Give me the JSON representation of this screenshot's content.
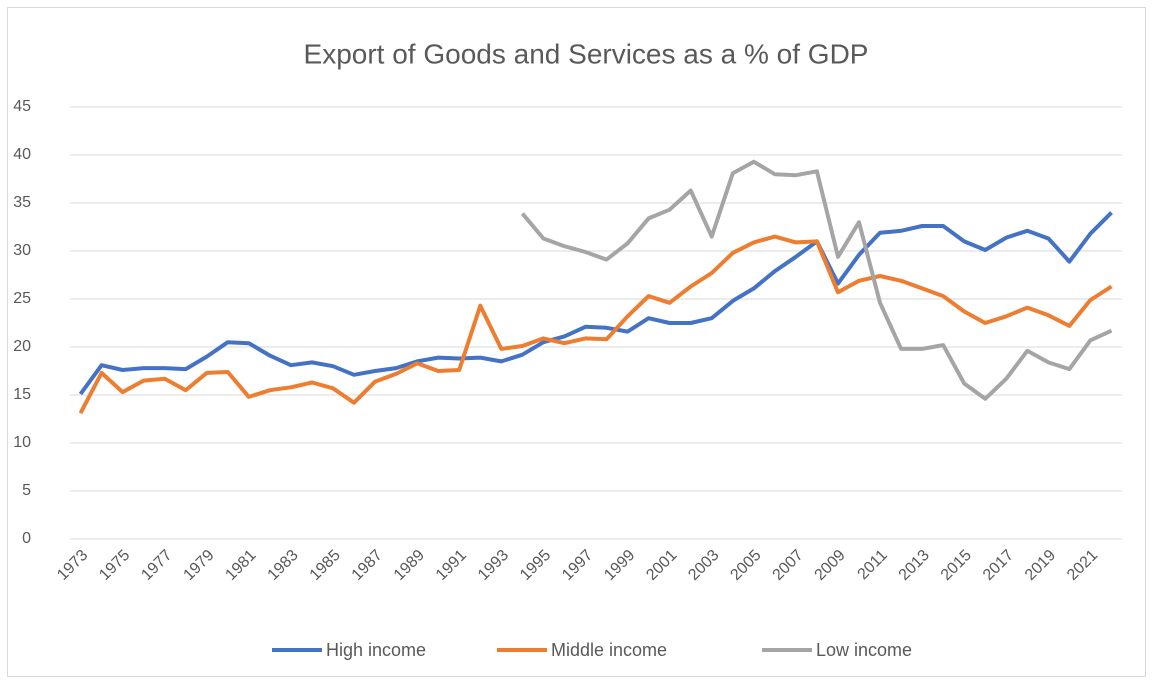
{
  "chart_data": {
    "type": "line",
    "title": "Export of Goods and Services as a % of GDP",
    "categories": [
      "1973",
      null,
      "1975",
      null,
      "1977",
      null,
      "1979",
      null,
      "1981",
      null,
      "1983",
      null,
      "1985",
      null,
      "1987",
      null,
      "1989",
      null,
      "1991",
      null,
      "1993",
      null,
      "1995",
      null,
      "1997",
      null,
      "1999",
      null,
      "2001",
      null,
      "2003",
      null,
      "2005",
      null,
      "2007",
      null,
      "2009",
      null,
      "2011",
      null,
      "2013",
      null,
      "2015",
      null,
      "2017",
      null,
      "2019",
      null,
      "2021",
      null
    ],
    "series": [
      {
        "name": "High income",
        "color": "#4472c4",
        "values": [
          15.1,
          18.1,
          17.6,
          17.8,
          17.8,
          17.7,
          19.0,
          20.5,
          20.4,
          19.1,
          18.1,
          18.4,
          18.0,
          17.1,
          17.5,
          17.8,
          18.5,
          18.9,
          18.8,
          18.9,
          18.5,
          19.2,
          20.5,
          21.1,
          22.1,
          22.0,
          21.6,
          23.0,
          22.5,
          22.5,
          23.0,
          24.8,
          26.1,
          27.9,
          29.4,
          31.0,
          26.6,
          29.6,
          31.9,
          32.1,
          32.6,
          32.6,
          31.0,
          30.1,
          31.4,
          32.1,
          31.3,
          28.9,
          31.8,
          34.0
        ]
      },
      {
        "name": "Middle income",
        "color": "#ed7d31",
        "values": [
          13.1,
          17.3,
          15.3,
          16.5,
          16.7,
          15.5,
          17.3,
          17.4,
          14.8,
          15.5,
          15.8,
          16.3,
          15.7,
          14.2,
          16.4,
          17.2,
          18.3,
          17.5,
          17.6,
          24.3,
          19.8,
          20.1,
          20.9,
          20.4,
          20.9,
          20.8,
          23.2,
          25.3,
          24.6,
          26.3,
          27.7,
          29.8,
          30.9,
          31.5,
          30.9,
          31.0,
          25.7,
          26.9,
          27.4,
          26.9,
          26.1,
          25.3,
          23.7,
          22.5,
          23.2,
          24.1,
          23.3,
          22.2,
          24.9,
          26.3
        ]
      },
      {
        "name": "Low income",
        "color": "#a5a5a5",
        "values": [
          null,
          null,
          null,
          null,
          null,
          null,
          null,
          null,
          null,
          null,
          null,
          null,
          null,
          null,
          null,
          null,
          null,
          null,
          null,
          null,
          null,
          33.9,
          31.3,
          30.5,
          29.9,
          29.1,
          30.8,
          33.4,
          34.3,
          36.3,
          31.5,
          38.1,
          39.3,
          38.0,
          37.9,
          38.3,
          29.4,
          33.0,
          24.6,
          19.8,
          19.8,
          20.2,
          16.2,
          14.6,
          16.7,
          19.6,
          18.4,
          17.7,
          20.7,
          21.7
        ]
      }
    ],
    "ylim": [
      0,
      45
    ],
    "yticks": [
      0,
      5,
      10,
      15,
      20,
      25,
      30,
      35,
      40,
      45
    ],
    "grid": true,
    "legend": "bottom"
  }
}
